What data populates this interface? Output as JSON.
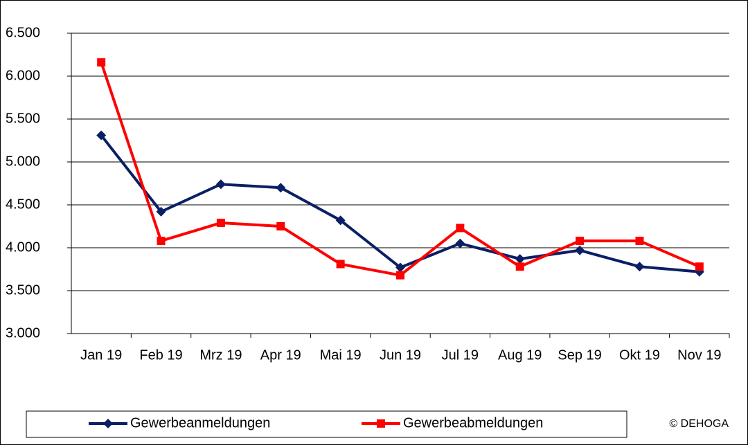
{
  "chart_data": {
    "type": "line",
    "categories": [
      "Jan 19",
      "Feb 19",
      "Mrz 19",
      "Apr 19",
      "Mai 19",
      "Jun 19",
      "Jul 19",
      "Aug 19",
      "Sep 19",
      "Okt 19",
      "Nov 19"
    ],
    "series": [
      {
        "name": "Gewerbeanmeldungen",
        "color": "#0a1f64",
        "marker": "diamond",
        "values": [
          5310,
          4420,
          4740,
          4700,
          4320,
          3770,
          4050,
          3870,
          3970,
          3780,
          3720
        ]
      },
      {
        "name": "Gewerbeabmeldungen",
        "color": "#ff0000",
        "marker": "square",
        "values": [
          6160,
          4080,
          4290,
          4250,
          3810,
          3680,
          4230,
          3780,
          4080,
          4080,
          3780
        ]
      }
    ],
    "ylim": [
      3000,
      6500
    ],
    "yticks": [
      {
        "value": 3000,
        "label": "3.000"
      },
      {
        "value": 3500,
        "label": "3.500"
      },
      {
        "value": 4000,
        "label": "4.000"
      },
      {
        "value": 4500,
        "label": "4.500"
      },
      {
        "value": 5000,
        "label": "5.000"
      },
      {
        "value": 5500,
        "label": "5.500"
      },
      {
        "value": 6000,
        "label": "6.000"
      },
      {
        "value": 6500,
        "label": "6.500"
      }
    ],
    "grid": true,
    "legend": "bottom",
    "annotation": "© DEHOGA"
  }
}
